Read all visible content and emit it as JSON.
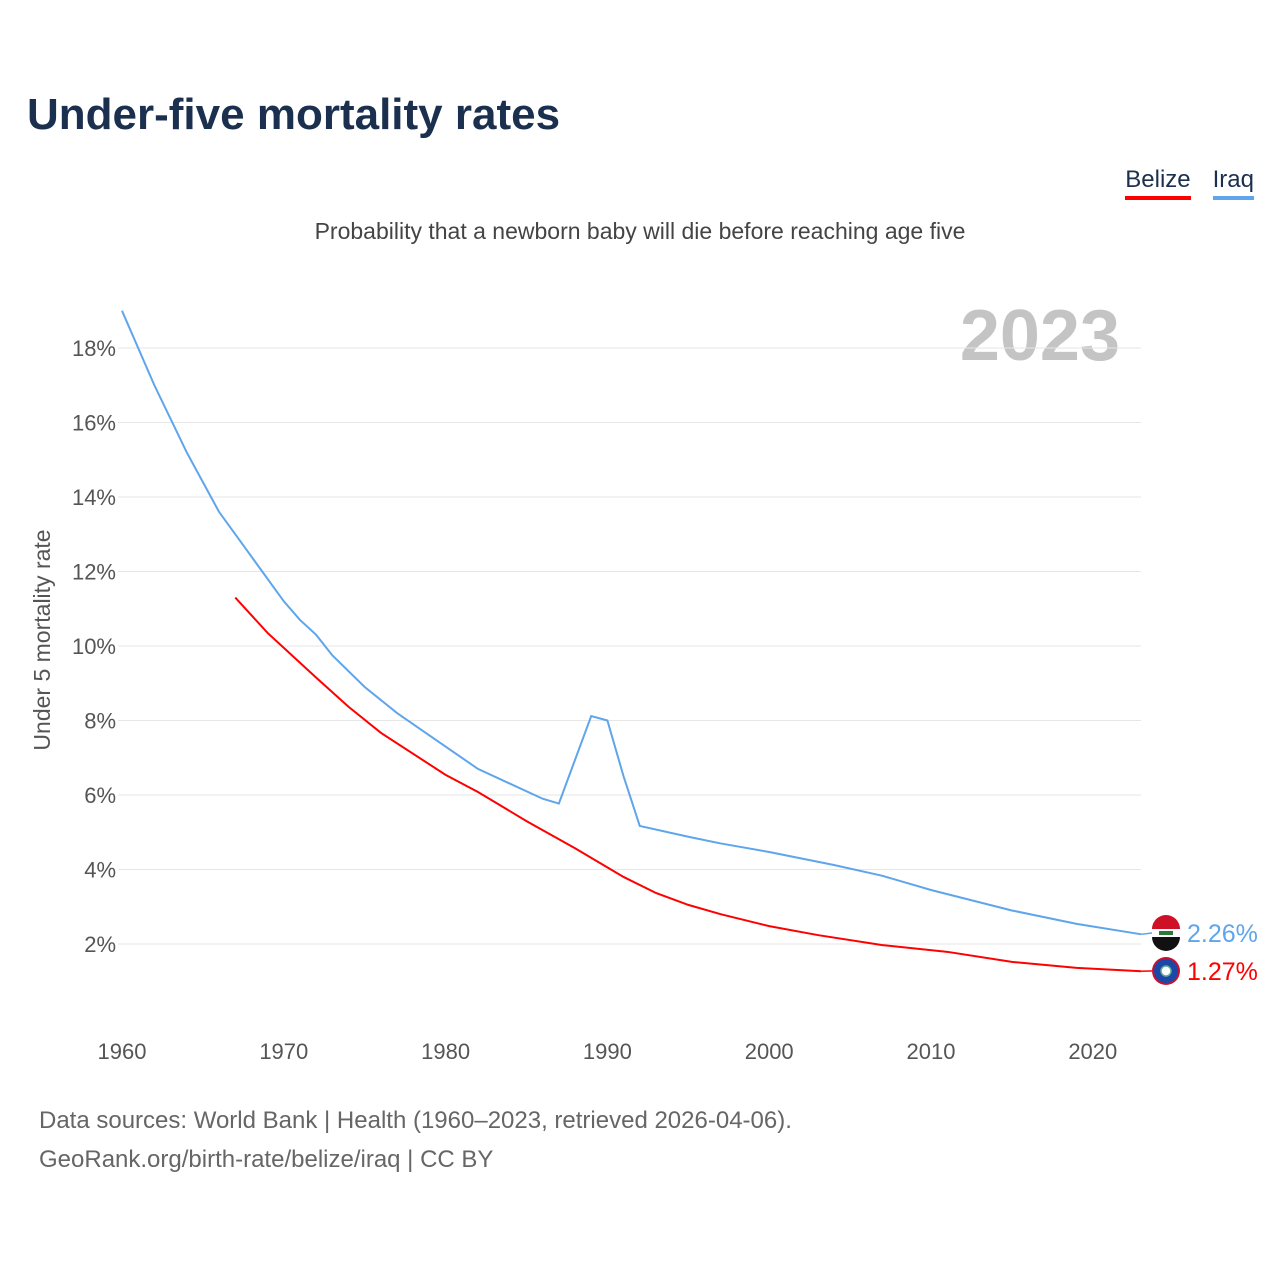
{
  "title": "Under-five mortality rates",
  "subtitle": "Probability that a newborn baby will die before reaching age five",
  "year_label": "2023",
  "footer": {
    "line1": "Data sources: World Bank | Health (1960–2023, retrieved 2026-04-06).",
    "line2": "GeoRank.org/birth-rate/belize/iraq | CC BY"
  },
  "chart_data": {
    "type": "line",
    "title": "Under-five mortality rates",
    "ylabel": "Under 5 mortality rate",
    "xlabel": "",
    "xlim": [
      1960,
      2023
    ],
    "ylim": [
      0,
      19
    ],
    "xticks": [
      1960,
      1970,
      1980,
      1990,
      2000,
      2010,
      2020
    ],
    "yticks": [
      2,
      4,
      6,
      8,
      10,
      12,
      14,
      16,
      18
    ],
    "grid": true,
    "legend": "top-right",
    "series": [
      {
        "name": "Belize",
        "color": "#ff0000",
        "end_label": "1.27%",
        "x": [
          1967,
          1969,
          1972,
          1974,
          1976,
          1980,
          1982,
          1985,
          1988,
          1991,
          1993,
          1995,
          1997,
          2000,
          2003,
          2007,
          2011,
          2015,
          2019,
          2023
        ],
        "y": [
          11.3,
          10.35,
          9.15,
          8.37,
          7.67,
          6.54,
          6.08,
          5.3,
          4.57,
          3.8,
          3.37,
          3.05,
          2.8,
          2.48,
          2.24,
          1.97,
          1.79,
          1.52,
          1.36,
          1.27
        ]
      },
      {
        "name": "Iraq",
        "color": "#5ea5ec",
        "end_label": "2.26%",
        "x": [
          1960,
          1962,
          1964,
          1965,
          1966,
          1968,
          1970,
          1971,
          1972,
          1973,
          1975,
          1977,
          1979,
          1982,
          1984,
          1986,
          1987,
          1989,
          1990,
          1991,
          1992,
          1995,
          1997,
          2000,
          2004,
          2007,
          2010,
          2015,
          2019,
          2023
        ],
        "y": [
          19.0,
          17.0,
          15.2,
          14.4,
          13.6,
          12.4,
          11.2,
          10.7,
          10.3,
          9.75,
          8.9,
          8.2,
          7.6,
          6.7,
          6.3,
          5.9,
          5.77,
          8.12,
          8.0,
          6.5,
          5.17,
          4.88,
          4.7,
          4.47,
          4.12,
          3.83,
          3.45,
          2.9,
          2.54,
          2.26
        ]
      }
    ]
  }
}
